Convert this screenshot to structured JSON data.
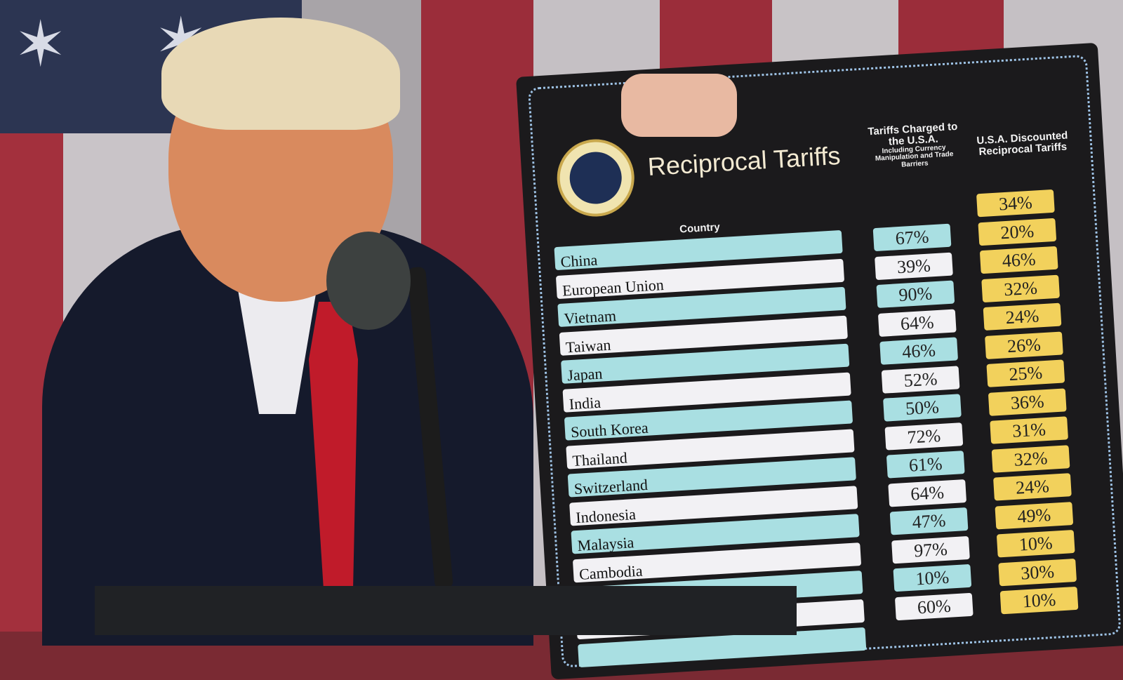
{
  "board": {
    "title": "Reciprocal Tariffs",
    "seal_text": "Seal of the President of the United States",
    "column_country": "Country",
    "column_charged": "Tariffs Charged to the U.S.A.",
    "column_charged_note": "Including Currency Manipulation and Trade Barriers",
    "column_reciprocal": "U.S.A. Discounted Reciprocal Tariffs",
    "rows": [
      {
        "country": "China",
        "charged": "67%",
        "reciprocal": "34%"
      },
      {
        "country": "European Union",
        "charged": "39%",
        "reciprocal": "20%"
      },
      {
        "country": "Vietnam",
        "charged": "90%",
        "reciprocal": "46%"
      },
      {
        "country": "Taiwan",
        "charged": "64%",
        "reciprocal": "32%"
      },
      {
        "country": "Japan",
        "charged": "46%",
        "reciprocal": "24%"
      },
      {
        "country": "India",
        "charged": "52%",
        "reciprocal": "26%"
      },
      {
        "country": "South Korea",
        "charged": "50%",
        "reciprocal": "25%"
      },
      {
        "country": "Thailand",
        "charged": "72%",
        "reciprocal": "36%"
      },
      {
        "country": "Switzerland",
        "charged": "61%",
        "reciprocal": "31%"
      },
      {
        "country": "Indonesia",
        "charged": "64%",
        "reciprocal": "32%"
      },
      {
        "country": "Malaysia",
        "charged": "47%",
        "reciprocal": "24%"
      },
      {
        "country": "Cambodia",
        "charged": "97%",
        "reciprocal": "49%"
      },
      {
        "country": "",
        "charged": "10%",
        "reciprocal": "10%"
      },
      {
        "country": "",
        "charged": "60%",
        "reciprocal": "30%"
      },
      {
        "country": "",
        "charged": "",
        "reciprocal": "10%"
      }
    ]
  },
  "colors": {
    "teal": "#a9dfe2",
    "white": "#f2f1f4",
    "yellow": "#f2d15c",
    "board": "#1b1a1c",
    "flag_red": "#9b2d3a"
  }
}
